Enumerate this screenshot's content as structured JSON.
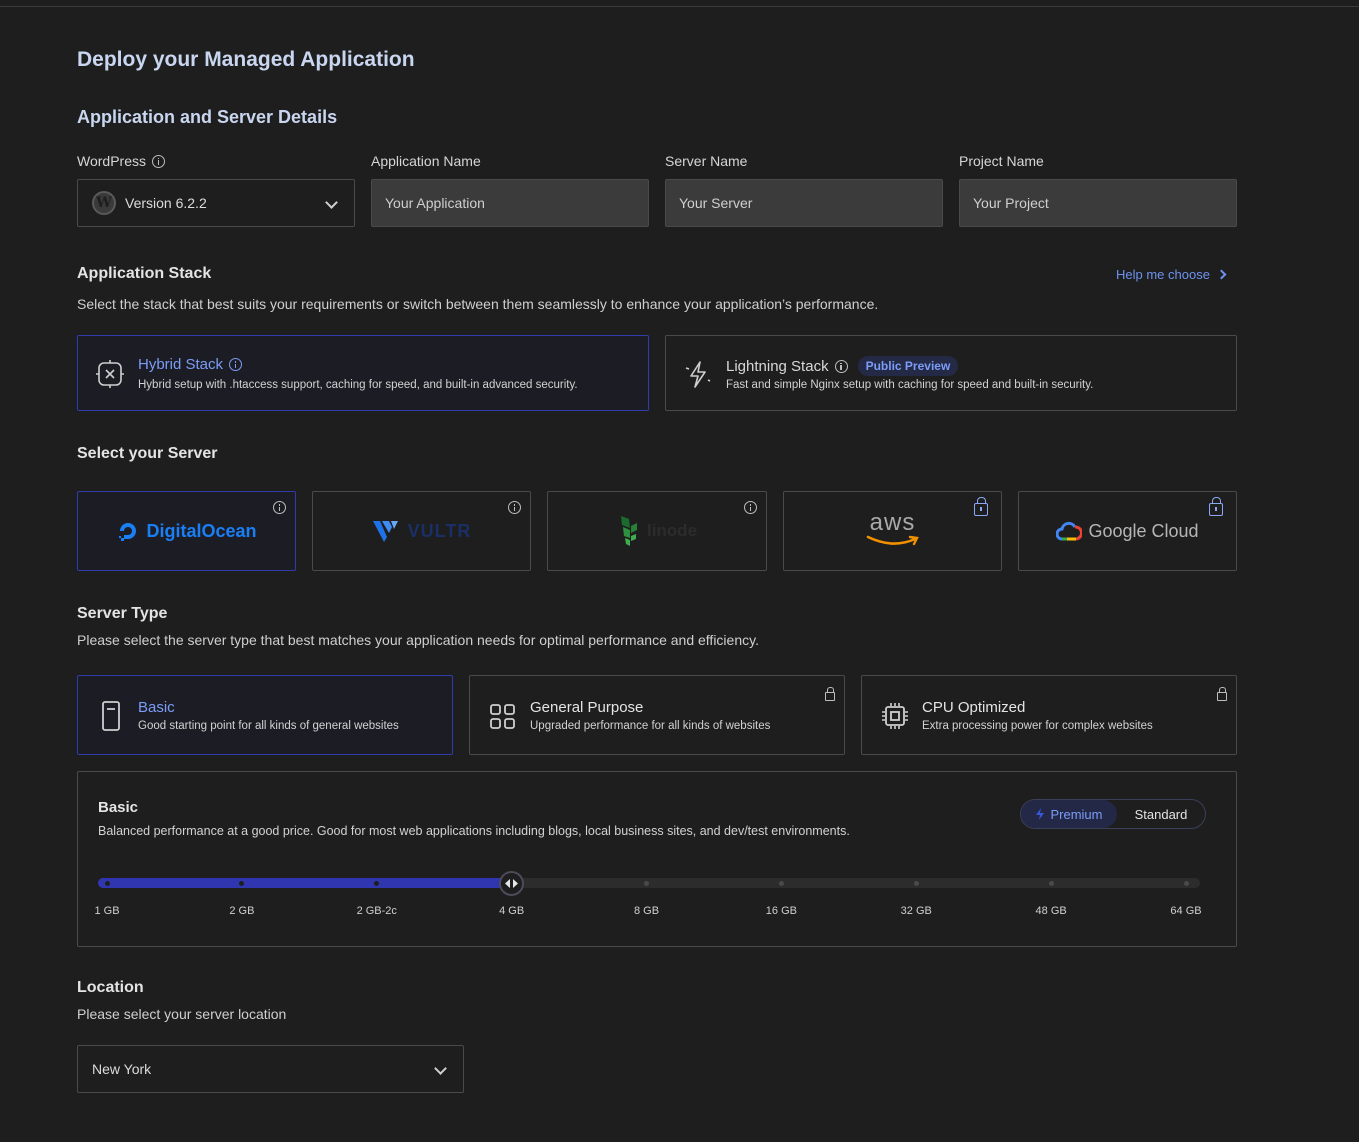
{
  "page": {
    "title": "Deploy your Managed Application"
  },
  "details": {
    "title": "Application and Server Details",
    "wordpress": {
      "label": "WordPress",
      "selected": "Version 6.2.2"
    },
    "app_name": {
      "label": "Application Name",
      "placeholder": "Your Application"
    },
    "server_name": {
      "label": "Server Name",
      "placeholder": "Your Server"
    },
    "project_name": {
      "label": "Project Name",
      "placeholder": "Your Project"
    }
  },
  "stack": {
    "title": "Application Stack",
    "help_link": "Help me choose",
    "description": "Select the stack that best suits your requirements or switch between them seamlessly to enhance your application’s performance.",
    "options": [
      {
        "name": "Hybrid Stack",
        "description": "Hybrid setup with .htaccess support, caching for speed, and built-in advanced security.",
        "selected": true
      },
      {
        "name": "Lightning Stack",
        "badge": "Public Preview",
        "description": "Fast and simple Nginx setup with caching for speed and built-in security.",
        "selected": false
      }
    ]
  },
  "server": {
    "title": "Select your Server",
    "providers": [
      {
        "name": "DigitalOcean",
        "selected": true,
        "locked": false
      },
      {
        "name": "VULTR",
        "selected": false,
        "locked": false
      },
      {
        "name": "linode",
        "selected": false,
        "locked": false
      },
      {
        "name": "aws",
        "selected": false,
        "locked": true
      },
      {
        "name": "Google Cloud",
        "selected": false,
        "locked": true
      }
    ]
  },
  "server_type": {
    "title": "Server Type",
    "description": "Please select the server type that best matches your application needs for optimal performance and efficiency.",
    "options": [
      {
        "name": "Basic",
        "description": "Good starting point for all kinds of general websites",
        "selected": true,
        "locked": false
      },
      {
        "name": "General Purpose",
        "description": "Upgraded performance for all kinds of websites",
        "selected": false,
        "locked": true
      },
      {
        "name": "CPU Optimized",
        "description": "Extra processing power for complex websites",
        "selected": false,
        "locked": true
      }
    ]
  },
  "plan": {
    "title": "Basic",
    "description": "Balanced performance at a good price. Good for most web applications including blogs, local business sites, and dev/test environments.",
    "toggle": {
      "premium": "Premium",
      "standard": "Standard",
      "active": "Premium"
    },
    "sizes": [
      "1 GB",
      "2 GB",
      "2 GB-2c",
      "4 GB",
      "8 GB",
      "16 GB",
      "32 GB",
      "48 GB",
      "64 GB"
    ],
    "selected_index": 3
  },
  "location": {
    "title": "Location",
    "description": "Please select your server location",
    "selected": "New York"
  },
  "colors": {
    "accent": "#7b9cf7",
    "selected_border": "#2f3cab",
    "slider_fill": "#2f36b0",
    "background": "#1e1e1e"
  }
}
